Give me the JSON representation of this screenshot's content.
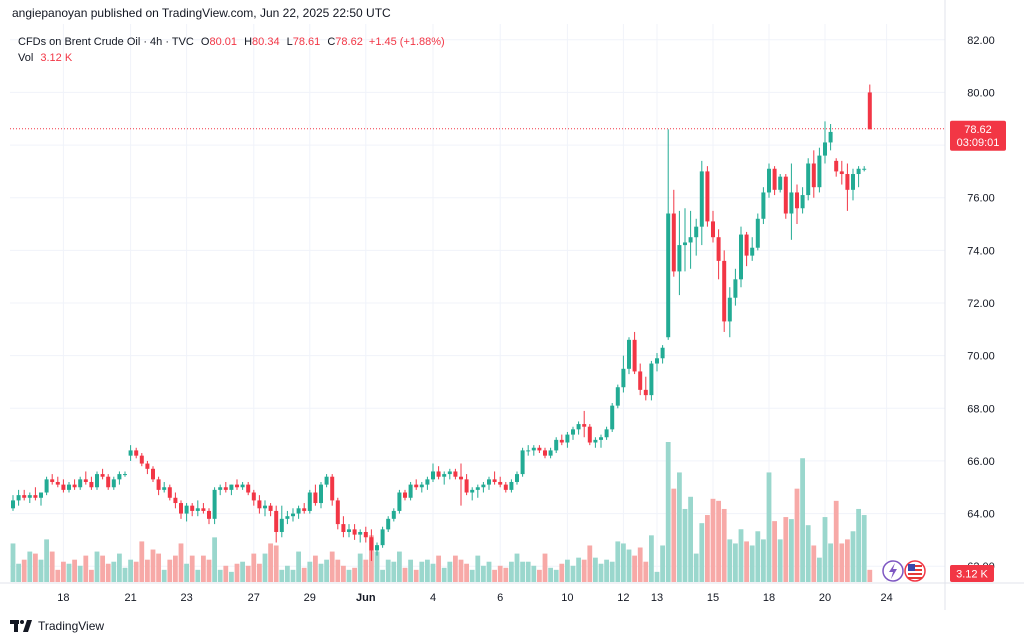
{
  "header": {
    "published": "angiepanoyan published on TradingView.com, Jun 22, 2025 22:50 UTC"
  },
  "legend": {
    "symbol": "CFDs on Brent Crude Oil · 4h · TVC",
    "open_label": "O",
    "open": "80.01",
    "high_label": "H",
    "high": "80.34",
    "low_label": "L",
    "low": "78.61",
    "close_label": "C",
    "close": "78.62",
    "change": "+1.45 (+1.88%)",
    "vol_label": "Vol",
    "vol": "3.12 K"
  },
  "colors": {
    "up": "#22ab94",
    "down": "#f23645",
    "up_vol": "#9ad7cd",
    "down_vol": "#f7a9a7",
    "grid": "#f0f3fa",
    "text": "#131722"
  },
  "price_tag": {
    "value": "78.62",
    "countdown": "03:09:01"
  },
  "volume_tag": "3.12 K",
  "icons": [
    "lightning-icon",
    "us-flag-icon"
  ],
  "footer": {
    "brand": "TradingView"
  },
  "chart_data": {
    "type": "candlestick",
    "y_ticks": [
      "62.00",
      "64.00",
      "66.00",
      "68.00",
      "70.00",
      "72.00",
      "74.00",
      "76.00",
      "78.00",
      "80.00",
      "82.00"
    ],
    "x_ticks": [
      {
        "label": "18",
        "i": 9
      },
      {
        "label": "21",
        "i": 21
      },
      {
        "label": "23",
        "i": 31
      },
      {
        "label": "27",
        "i": 43
      },
      {
        "label": "29",
        "i": 53
      },
      {
        "label": "Jun",
        "i": 63
      },
      {
        "label": "4",
        "i": 75
      },
      {
        "label": "6",
        "i": 87
      },
      {
        "label": "10",
        "i": 99
      },
      {
        "label": "12",
        "i": 109
      },
      {
        "label": "13",
        "i": 115
      },
      {
        "label": "15",
        "i": 125
      },
      {
        "label": "18",
        "i": 135
      },
      {
        "label": "20",
        "i": 145
      },
      {
        "label": "24",
        "i": 156
      }
    ],
    "ylim": [
      61.4,
      82.6
    ],
    "candles": [
      [
        64.2,
        64.7,
        64.1,
        64.5,
        38
      ],
      [
        64.5,
        64.9,
        64.3,
        64.7,
        18
      ],
      [
        64.7,
        64.9,
        64.5,
        64.6,
        22
      ],
      [
        64.6,
        64.8,
        64.4,
        64.7,
        30
      ],
      [
        64.7,
        65.0,
        64.5,
        64.6,
        28
      ],
      [
        64.6,
        64.8,
        64.3,
        64.8,
        22
      ],
      [
        64.8,
        65.4,
        64.7,
        65.3,
        42
      ],
      [
        65.3,
        65.5,
        65.1,
        65.2,
        30
      ],
      [
        65.2,
        65.4,
        65.0,
        65.1,
        12
      ],
      [
        65.1,
        65.3,
        64.8,
        64.9,
        20
      ],
      [
        64.9,
        65.2,
        64.8,
        65.1,
        18
      ],
      [
        65.1,
        65.3,
        64.9,
        65.0,
        22
      ],
      [
        65.0,
        65.4,
        64.9,
        65.3,
        16
      ],
      [
        65.3,
        65.6,
        65.1,
        65.2,
        26
      ],
      [
        65.2,
        65.4,
        64.9,
        65.0,
        12
      ],
      [
        65.0,
        65.6,
        64.9,
        65.5,
        30
      ],
      [
        65.5,
        65.7,
        65.3,
        65.4,
        26
      ],
      [
        65.4,
        65.5,
        64.9,
        65.0,
        18
      ],
      [
        65.0,
        65.4,
        64.9,
        65.3,
        20
      ],
      [
        65.3,
        65.6,
        65.1,
        65.5,
        28
      ],
      [
        65.5,
        65.6,
        65.4,
        65.5,
        14
      ],
      [
        66.2,
        66.6,
        66.0,
        66.4,
        22
      ],
      [
        66.4,
        66.5,
        66.1,
        66.2,
        20
      ],
      [
        66.2,
        66.3,
        65.8,
        65.9,
        40
      ],
      [
        65.9,
        66.0,
        65.5,
        65.7,
        22
      ],
      [
        65.7,
        65.8,
        65.2,
        65.3,
        32
      ],
      [
        65.3,
        65.4,
        64.7,
        64.9,
        28
      ],
      [
        64.9,
        65.2,
        64.8,
        65.0,
        12
      ],
      [
        65.0,
        65.1,
        64.5,
        64.6,
        22
      ],
      [
        64.6,
        64.8,
        64.2,
        64.4,
        26
      ],
      [
        64.4,
        64.5,
        63.8,
        64.0,
        38
      ],
      [
        64.0,
        64.4,
        63.7,
        64.3,
        18
      ],
      [
        64.3,
        64.4,
        63.9,
        64.1,
        26
      ],
      [
        64.1,
        64.5,
        63.9,
        64.2,
        12
      ],
      [
        64.2,
        64.4,
        64.0,
        64.1,
        26
      ],
      [
        64.1,
        64.2,
        63.6,
        63.8,
        22
      ],
      [
        63.8,
        65.0,
        63.6,
        64.9,
        44
      ],
      [
        64.9,
        65.1,
        64.7,
        65.0,
        12
      ],
      [
        65.0,
        65.2,
        64.8,
        64.9,
        16
      ],
      [
        64.9,
        65.1,
        64.7,
        65.1,
        10
      ],
      [
        65.1,
        65.3,
        64.9,
        65.0,
        18
      ],
      [
        65.0,
        65.2,
        64.9,
        65.1,
        20
      ],
      [
        65.1,
        65.2,
        64.7,
        64.8,
        16
      ],
      [
        64.8,
        64.9,
        64.3,
        64.5,
        28
      ],
      [
        64.5,
        64.7,
        64.0,
        64.2,
        18
      ],
      [
        64.2,
        64.5,
        63.9,
        64.3,
        28
      ],
      [
        64.3,
        64.4,
        63.9,
        64.1,
        38
      ],
      [
        64.1,
        64.3,
        62.9,
        63.3,
        36
      ],
      [
        63.3,
        64.3,
        63.1,
        63.8,
        12
      ],
      [
        63.8,
        64.1,
        63.6,
        63.9,
        16
      ],
      [
        63.9,
        64.2,
        63.7,
        64.0,
        12
      ],
      [
        64.0,
        64.3,
        63.8,
        64.2,
        30
      ],
      [
        64.2,
        64.4,
        64.0,
        64.1,
        14
      ],
      [
        64.1,
        64.9,
        64.0,
        64.8,
        20
      ],
      [
        64.8,
        65.1,
        64.3,
        64.4,
        26
      ],
      [
        64.4,
        65.2,
        64.2,
        65.1,
        18
      ],
      [
        65.1,
        65.5,
        65.0,
        65.4,
        22
      ],
      [
        65.4,
        65.5,
        64.3,
        64.5,
        30
      ],
      [
        64.5,
        64.6,
        63.4,
        63.6,
        22
      ],
      [
        63.6,
        63.9,
        63.1,
        63.3,
        16
      ],
      [
        63.3,
        63.6,
        63.1,
        63.4,
        12
      ],
      [
        63.4,
        63.6,
        63.0,
        63.2,
        14
      ],
      [
        63.2,
        63.4,
        62.9,
        63.3,
        28
      ],
      [
        63.3,
        63.5,
        62.9,
        63.1,
        22
      ],
      [
        63.1,
        63.4,
        62.2,
        62.6,
        46
      ],
      [
        62.6,
        62.9,
        62.4,
        62.8,
        30
      ],
      [
        62.8,
        63.5,
        62.7,
        63.4,
        12
      ],
      [
        63.4,
        63.9,
        63.3,
        63.8,
        22
      ],
      [
        63.8,
        64.2,
        63.7,
        64.1,
        20
      ],
      [
        64.1,
        64.9,
        64.0,
        64.8,
        30
      ],
      [
        64.8,
        64.9,
        64.5,
        64.6,
        14
      ],
      [
        64.6,
        65.2,
        64.5,
        65.1,
        22
      ],
      [
        65.1,
        65.3,
        64.9,
        65.0,
        12
      ],
      [
        65.0,
        65.2,
        64.8,
        65.1,
        20
      ],
      [
        65.1,
        65.4,
        64.9,
        65.3,
        22
      ],
      [
        65.3,
        65.9,
        65.2,
        65.6,
        18
      ],
      [
        65.6,
        65.8,
        65.3,
        65.4,
        26
      ],
      [
        65.4,
        65.6,
        65.1,
        65.5,
        14
      ],
      [
        65.5,
        65.7,
        65.3,
        65.6,
        20
      ],
      [
        65.6,
        65.7,
        65.3,
        65.4,
        26
      ],
      [
        65.4,
        65.9,
        64.3,
        65.3,
        22
      ],
      [
        65.3,
        65.5,
        64.7,
        64.8,
        18
      ],
      [
        64.8,
        65.0,
        64.5,
        64.9,
        12
      ],
      [
        64.9,
        65.1,
        64.6,
        65.0,
        26
      ],
      [
        65.0,
        65.2,
        64.8,
        65.1,
        16
      ],
      [
        65.1,
        65.4,
        64.9,
        65.3,
        20
      ],
      [
        65.3,
        65.6,
        65.1,
        65.2,
        12
      ],
      [
        65.2,
        65.4,
        65.0,
        65.1,
        16
      ],
      [
        65.1,
        65.2,
        64.8,
        64.9,
        14
      ],
      [
        64.9,
        65.3,
        64.8,
        65.2,
        20
      ],
      [
        65.2,
        65.6,
        65.1,
        65.5,
        28
      ],
      [
        65.5,
        66.5,
        65.4,
        66.4,
        20
      ],
      [
        66.4,
        66.6,
        66.2,
        66.4,
        20
      ],
      [
        66.4,
        66.6,
        66.2,
        66.5,
        16
      ],
      [
        66.5,
        66.6,
        66.3,
        66.4,
        12
      ],
      [
        66.4,
        66.5,
        66.1,
        66.2,
        28
      ],
      [
        66.2,
        66.5,
        66.1,
        66.4,
        14
      ],
      [
        66.4,
        66.9,
        66.3,
        66.8,
        12
      ],
      [
        66.8,
        67.0,
        66.6,
        66.7,
        18
      ],
      [
        66.7,
        67.1,
        66.5,
        67.0,
        22
      ],
      [
        67.0,
        67.3,
        66.8,
        67.2,
        16
      ],
      [
        67.2,
        67.5,
        67.0,
        67.4,
        24
      ],
      [
        67.4,
        67.9,
        66.9,
        67.3,
        22
      ],
      [
        67.3,
        67.4,
        66.6,
        66.7,
        36
      ],
      [
        66.7,
        66.9,
        66.5,
        66.8,
        24
      ],
      [
        66.8,
        67.0,
        66.5,
        66.9,
        18
      ],
      [
        66.9,
        67.3,
        66.8,
        67.2,
        22
      ],
      [
        67.2,
        68.2,
        67.1,
        68.1,
        20
      ],
      [
        68.1,
        68.9,
        68.0,
        68.8,
        40
      ],
      [
        68.8,
        70.0,
        68.6,
        69.5,
        38
      ],
      [
        69.5,
        70.7,
        69.3,
        70.6,
        32
      ],
      [
        70.6,
        70.9,
        69.3,
        69.4,
        26
      ],
      [
        69.4,
        69.7,
        68.5,
        68.7,
        34
      ],
      [
        68.7,
        69.2,
        68.3,
        68.5,
        20
      ],
      [
        68.5,
        69.8,
        68.3,
        69.7,
        46
      ],
      [
        69.7,
        70.1,
        69.4,
        69.9,
        10
      ],
      [
        69.9,
        70.4,
        69.7,
        70.3,
        36
      ],
      [
        70.7,
        78.6,
        70.6,
        75.4,
        138
      ],
      [
        75.4,
        76.3,
        73.0,
        73.2,
        92
      ],
      [
        73.2,
        75.5,
        72.3,
        74.2,
        108
      ],
      [
        74.2,
        75.6,
        73.2,
        74.3,
        72
      ],
      [
        74.3,
        75.5,
        73.3,
        74.5,
        84
      ],
      [
        74.5,
        75.2,
        73.8,
        74.9,
        28
      ],
      [
        74.9,
        77.4,
        74.2,
        77.0,
        58
      ],
      [
        77.0,
        77.2,
        74.9,
        75.1,
        66
      ],
      [
        75.1,
        75.5,
        74.3,
        74.5,
        82
      ],
      [
        74.5,
        74.8,
        72.9,
        73.6,
        80
      ],
      [
        73.6,
        74.0,
        70.9,
        71.3,
        72
      ],
      [
        71.3,
        72.6,
        70.7,
        72.2,
        42
      ],
      [
        72.2,
        73.3,
        71.9,
        72.9,
        38
      ],
      [
        72.9,
        74.9,
        72.6,
        74.6,
        52
      ],
      [
        74.6,
        74.7,
        73.4,
        73.8,
        40
      ],
      [
        73.8,
        74.5,
        73.6,
        74.1,
        36
      ],
      [
        74.1,
        75.4,
        74.0,
        75.2,
        50
      ],
      [
        75.2,
        76.4,
        75.0,
        76.2,
        42
      ],
      [
        76.2,
        77.3,
        76.0,
        77.1,
        108
      ],
      [
        77.1,
        77.2,
        76.1,
        76.3,
        60
      ],
      [
        76.3,
        76.9,
        76.2,
        76.8,
        42
      ],
      [
        76.8,
        76.9,
        75.2,
        75.4,
        64
      ],
      [
        75.4,
        77.3,
        74.4,
        76.2,
        62
      ],
      [
        76.2,
        76.5,
        75.0,
        75.6,
        92
      ],
      [
        75.6,
        76.4,
        75.4,
        76.1,
        122
      ],
      [
        76.1,
        77.5,
        75.9,
        77.3,
        56
      ],
      [
        77.3,
        77.8,
        76.0,
        76.4,
        36
      ],
      [
        76.4,
        77.9,
        76.2,
        77.6,
        24
      ],
      [
        77.6,
        78.9,
        77.3,
        78.1,
        64
      ],
      [
        78.1,
        78.8,
        77.8,
        78.5,
        38
      ],
      [
        77.4,
        77.5,
        76.8,
        77.0,
        80
      ],
      [
        77.0,
        77.4,
        76.5,
        76.9,
        38
      ],
      [
        76.9,
        77.3,
        75.5,
        76.3,
        42
      ],
      [
        76.3,
        77.1,
        75.9,
        76.9,
        50
      ],
      [
        76.9,
        77.2,
        76.4,
        77.1,
        72
      ],
      [
        77.1,
        77.2,
        77.0,
        77.1,
        66
      ],
      [
        80.0,
        80.3,
        78.6,
        78.6,
        12
      ]
    ]
  }
}
